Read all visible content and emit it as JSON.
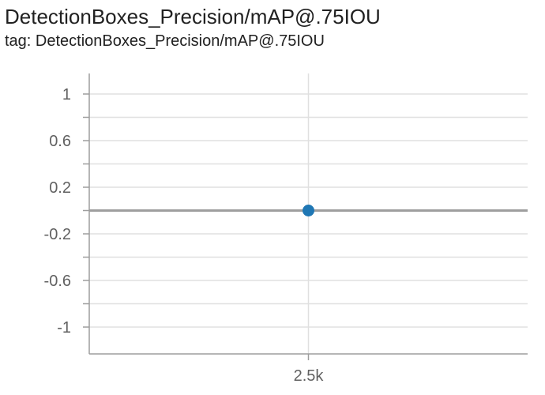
{
  "title": "DetectionBoxes_Precision/mAP@.75IOU",
  "tag": "tag: DetectionBoxes_Precision/mAP@.75IOU",
  "colors": {
    "series": "#1f77b4",
    "grid": "#e0e0e0",
    "axis": "#9e9e9e",
    "zero_line": "#9e9e9e"
  },
  "chart_data": {
    "type": "scatter",
    "title": "DetectionBoxes_Precision/mAP@.75IOU",
    "xlabel": "",
    "ylabel": "",
    "x_ticks": [
      "2.5k"
    ],
    "x_tick_values": [
      2500
    ],
    "y_ticks": [
      "1",
      "0.6",
      "0.2",
      "-0.2",
      "-0.6",
      "-1"
    ],
    "y_tick_values": [
      1,
      0.6,
      0.2,
      -0.2,
      -0.6,
      -1
    ],
    "xlim": [
      2000,
      3000
    ],
    "ylim": [
      -1.2,
      1.2
    ],
    "grid": true,
    "series": [
      {
        "points": [
          {
            "x": 2500,
            "y": 0
          }
        ]
      }
    ]
  }
}
